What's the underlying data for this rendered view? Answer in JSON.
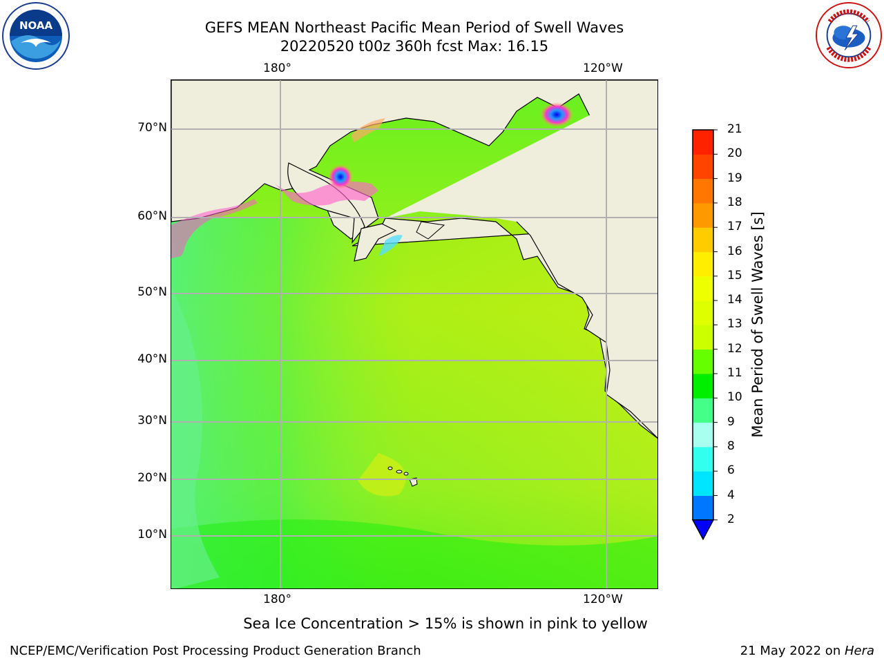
{
  "title": {
    "line1": "GEFS MEAN Northeast Pacific Mean Period of Swell Waves",
    "line2": "20220520 t00z 360h fcst   Max: 16.15"
  },
  "logos": {
    "left": {
      "name": "NOAA",
      "text": "NOAA"
    },
    "right": {
      "name": "National Weather Service",
      "text": "NATIONAL WEATHER SERVICE"
    }
  },
  "map": {
    "lon_labels_top": [
      "180°",
      "120°W"
    ],
    "lon_labels_bottom": [
      "180°",
      "120°W"
    ],
    "lat_labels": [
      "70°N",
      "60°N",
      "50°N",
      "40°N",
      "30°N",
      "20°N",
      "10°N"
    ],
    "colors": {
      "land": "#efeddc",
      "grid": "#b0b0b0",
      "ocean_south": "#33ee22",
      "ocean_west": "#55f07a",
      "ocean_east": "#cfee10",
      "ocean_mid": "#80f020"
    }
  },
  "colorbar": {
    "label": "Mean Period of Swell Waves [s]",
    "ticks": [
      "2",
      "4",
      "6",
      "8",
      "9",
      "10",
      "11",
      "12",
      "13",
      "14",
      "15",
      "16",
      "17",
      "18",
      "19",
      "20",
      "21"
    ],
    "colors": [
      "#0077ff",
      "#00e5ff",
      "#33ffee",
      "#a8fff0",
      "#44ff88",
      "#00ee00",
      "#66ff00",
      "#ccff00",
      "#ddff00",
      "#eeff00",
      "#ffee00",
      "#ffcc00",
      "#ff9900",
      "#ff7700",
      "#ff4400",
      "#ff2200"
    ],
    "under_color": "#0000ff"
  },
  "caption": "Sea Ice Concentration > 15% is shown in pink to yellow",
  "footer": {
    "left": "NCEP/EMC/Verification Post Processing Product Generation Branch",
    "right_prefix": "21 May 2022 on ",
    "right_italic": "Hera"
  }
}
